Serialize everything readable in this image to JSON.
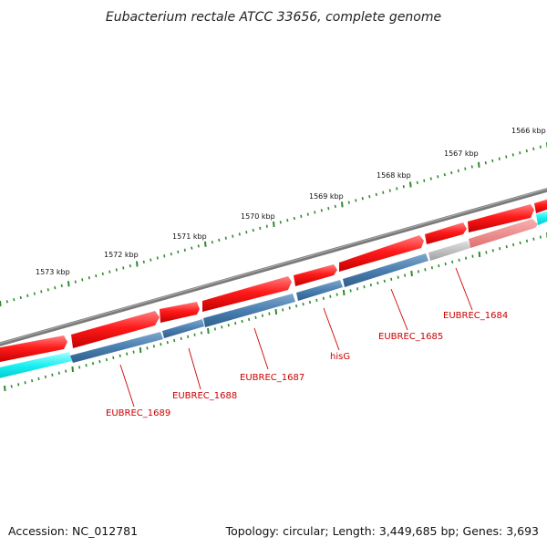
{
  "title": "Eubacterium rectale ATCC 33656, complete genome",
  "footer": {
    "accession": "Accession: NC_012781",
    "summary": "Topology: circular; Length: 3,449,685 bp; Genes: 3,693"
  },
  "colors": {
    "backbone": "#808080",
    "cds_forward": "#e60000",
    "cds_reverse": "#3f78a8",
    "rna": "#00e5ee",
    "pseudo": "#b3b3b3",
    "pseudo_forward": "#f08080",
    "tick": "#2e8b2e",
    "label_line": "#cc0000"
  },
  "scale_labels": [
    {
      "text": "1573 kbp",
      "kbp": 1573
    },
    {
      "text": "1572 kbp",
      "kbp": 1572
    },
    {
      "text": "1571 kbp",
      "kbp": 1571
    },
    {
      "text": "1570 kbp",
      "kbp": 1570
    },
    {
      "text": "1569 kbp",
      "kbp": 1569
    },
    {
      "text": "1568 kbp",
      "kbp": 1568
    },
    {
      "text": "1567 kbp",
      "kbp": 1567
    },
    {
      "text": "1566 kbp",
      "kbp": 1566
    }
  ],
  "gene_labels": [
    {
      "text": "EUBREC_1689"
    },
    {
      "text": "EUBREC_1688"
    },
    {
      "text": "EUBREC_1687"
    },
    {
      "text": "hisG"
    },
    {
      "text": "EUBREC_1685"
    },
    {
      "text": "EUBREC_1684"
    }
  ]
}
